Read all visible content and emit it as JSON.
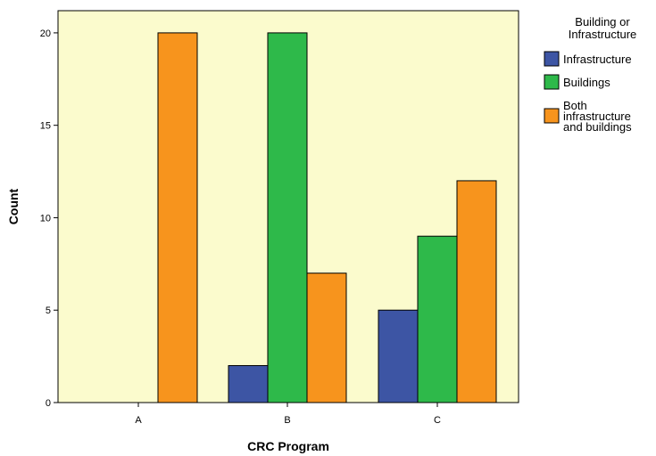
{
  "chart_data": {
    "type": "bar",
    "title": "",
    "xlabel": "CRC Program",
    "ylabel": "Count",
    "categories": [
      "A",
      "B",
      "C"
    ],
    "ylim": [
      0,
      21.2
    ],
    "yticks": [
      0,
      5,
      10,
      15,
      20
    ],
    "grid": false,
    "legend_position": "right",
    "legend_title": "Building or Infrastructure",
    "plot_background": "#fbfbcd",
    "series": [
      {
        "name": "Infrastructure",
        "color": "#3d55a4",
        "values": [
          0,
          2,
          5
        ]
      },
      {
        "name": "Buildings",
        "color": "#2eb94a",
        "values": [
          0,
          20,
          9
        ]
      },
      {
        "name": "Both infrastructure and buildings",
        "color": "#f7941d",
        "values": [
          20,
          7,
          12
        ]
      }
    ]
  }
}
